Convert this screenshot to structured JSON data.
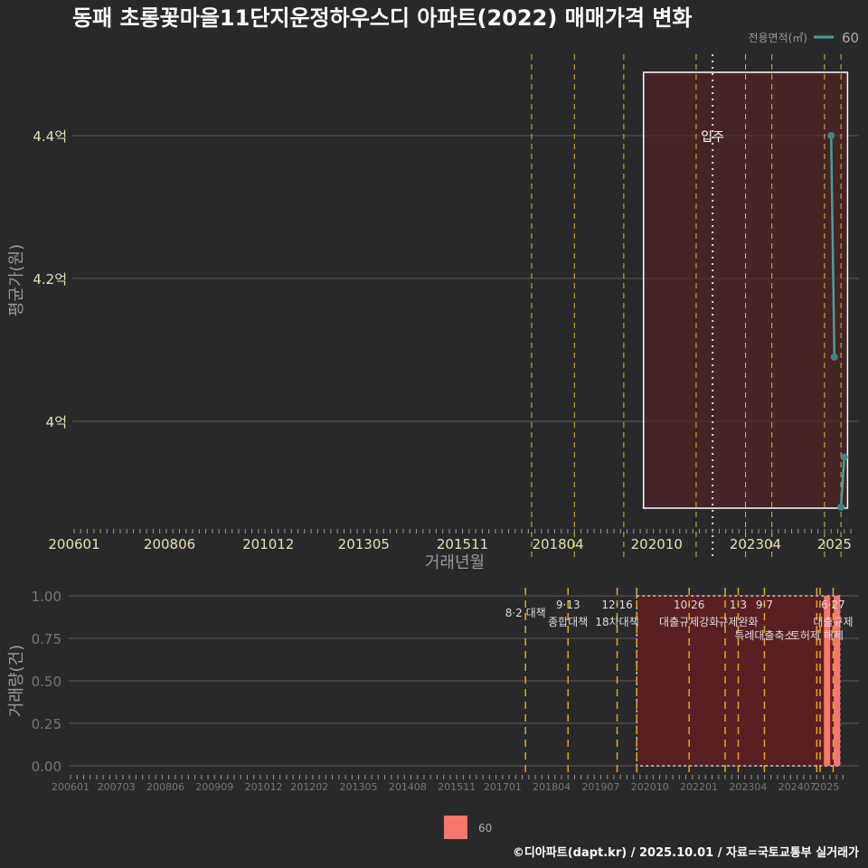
{
  "chart_data": [
    {
      "type": "line",
      "title": "동패 초롱꽃마을11단지운정하우스디 아파트(2022) 매매가격 변화",
      "xlabel": "거래년월",
      "ylabel": "평균가(원)",
      "ylim": [
        3.87,
        4.49
      ],
      "yticks": [
        {
          "v": 4.0,
          "label": "4억"
        },
        {
          "v": 4.2,
          "label": "4.2억"
        },
        {
          "v": 4.4,
          "label": "4.4억"
        }
      ],
      "xticks": [
        "200601",
        "200806",
        "201012",
        "201305",
        "201511",
        "201804",
        "202010",
        "202304",
        "2025"
      ],
      "legend": {
        "title": "전용면적(㎡)",
        "entries": [
          "60"
        ],
        "placement": "top-right"
      },
      "series": [
        {
          "name": "60",
          "color": "#3fa39b",
          "points": [
            {
              "x": "2025-03",
              "y": 4.4
            },
            {
              "x": "2025-04",
              "y": 4.09
            },
            {
              "x": "2025-06",
              "y": 3.88
            },
            {
              "x": "2025-07",
              "y": 3.95
            }
          ]
        }
      ],
      "move_in_label": "입주",
      "move_in_month": "2022-03",
      "highlight_range": [
        "2020-06",
        "2025-08"
      ],
      "policy_months": [
        "2017-08",
        "2018-09",
        "2019-12",
        "2021-10",
        "2023-01",
        "2023-09",
        "2025-01",
        "2025-06"
      ]
    },
    {
      "type": "bar",
      "ylabel": "거래량(건)",
      "ylim": [
        0,
        1
      ],
      "yticks": [
        "0.00",
        "0.25",
        "0.50",
        "0.75",
        "1.00"
      ],
      "xticks": [
        "200601",
        "200703",
        "200806",
        "200909",
        "201012",
        "201202",
        "201305",
        "201408",
        "201511",
        "201701",
        "201804",
        "201907",
        "202010",
        "202201",
        "202304",
        "202407",
        "2025"
      ],
      "bars": [
        {
          "x": "2025-04",
          "value": 1,
          "series": "60"
        },
        {
          "x": "2025-07",
          "value": 1,
          "series": "60"
        }
      ],
      "bar_color": "#f8766d",
      "legend": {
        "entries": [
          "60"
        ],
        "placement": "bottom"
      },
      "policies": [
        {
          "month": "2017-08",
          "date": "",
          "label": "8·2 대책"
        },
        {
          "month": "2018-09",
          "date": "9·13",
          "label": "종합대책"
        },
        {
          "month": "2019-12",
          "date": "12·16",
          "label": "18차대책"
        },
        {
          "month": "2020-06",
          "date": "",
          "label": ""
        },
        {
          "month": "2021-10",
          "date": "10·26",
          "label": "대출규제강화"
        },
        {
          "month": "2022-09",
          "date": "",
          "label": ""
        },
        {
          "month": "2023-01",
          "date": "1·3",
          "label": "규제완화"
        },
        {
          "month": "2023-09",
          "date": "9·7",
          "label": "특례대출축소"
        },
        {
          "month": "2025-01",
          "date": "",
          "label": "토허제 해제"
        },
        {
          "month": "2025-02",
          "date": "",
          "label": ""
        },
        {
          "month": "2025-06",
          "date": "6·27",
          "label": "대출규제"
        }
      ],
      "highlight_range": [
        "2020-06",
        "2025-08"
      ]
    }
  ],
  "footer": "©디아파트(dapt.kr) / 2025.10.01 / 자료=국토교통부 실거래가",
  "colors": {
    "line": "#3fa39b",
    "bar": "#f8766d",
    "highlight": "#5a1f22",
    "policy": "#e6a817"
  }
}
